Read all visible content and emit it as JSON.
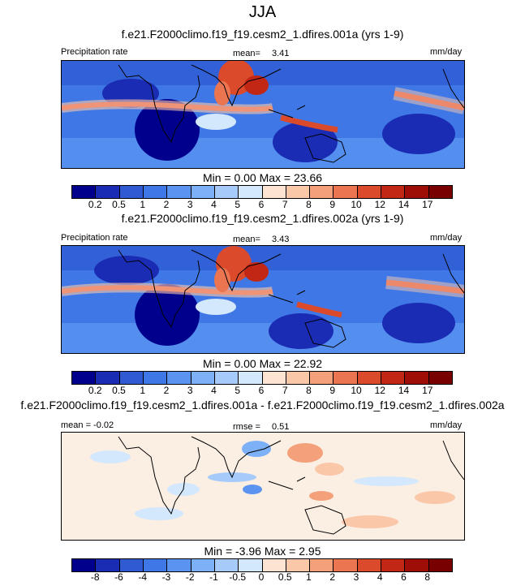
{
  "main_title": "JJA",
  "colors": {
    "precip_palette": [
      "#00008c",
      "#1a2cb4",
      "#2f5ad2",
      "#3f78e6",
      "#5a94f0",
      "#7cb0f7",
      "#a6cbfa",
      "#d3e7fd",
      "#fde4d2",
      "#fbc7a9",
      "#f4a07a",
      "#ea7550",
      "#dc4a2c",
      "#c22614",
      "#9e0d06",
      "#780000"
    ],
    "diff_palette": [
      "#00008c",
      "#1a2cb4",
      "#2f5ad2",
      "#3f78e6",
      "#5a94f0",
      "#7cb0f7",
      "#a6cbfa",
      "#d3e7fd",
      "#fde4d2",
      "#fbc7a9",
      "#f4a07a",
      "#ea7550",
      "#dc4a2c",
      "#c22614",
      "#9e0d06",
      "#780000"
    ]
  },
  "chart_data": [
    {
      "type": "heatmap",
      "title": "f.e21.F2000climo.f19_f19.cesm2_1.dfires.001a (yrs 1-9)",
      "left_label": "Precipitation rate",
      "mean_label": "mean=",
      "mean_value": "3.41",
      "units": "mm/day",
      "min_label": "Min =",
      "min_value": "0.00",
      "max_label": "Max =",
      "max_value": "23.66",
      "colorbar_levels": [
        "0.2",
        "0.5",
        "1",
        "2",
        "3",
        "4",
        "5",
        "6",
        "7",
        "8",
        "9",
        "10",
        "12",
        "14",
        "17"
      ]
    },
    {
      "type": "heatmap",
      "title": "f.e21.F2000climo.f19_f19.cesm2_1.dfires.002a (yrs 1-9)",
      "left_label": "Precipitation rate",
      "mean_label": "mean=",
      "mean_value": "3.43",
      "units": "mm/day",
      "min_label": "Min =",
      "min_value": "0.00",
      "max_label": "Max =",
      "max_value": "22.92",
      "colorbar_levels": [
        "0.2",
        "0.5",
        "1",
        "2",
        "3",
        "4",
        "5",
        "6",
        "7",
        "8",
        "9",
        "10",
        "12",
        "14",
        "17"
      ]
    },
    {
      "type": "heatmap",
      "title": "f.e21.F2000climo.f19_f19.cesm2_1.dfires.001a - f.e21.F2000climo.f19_f19.cesm2_1.dfires.002a",
      "left_label": "mean = -0.02",
      "mean_label": "rmse =",
      "mean_value": "0.51",
      "units": "mm/day",
      "min_label": "Min =",
      "min_value": "-3.96",
      "max_label": "Max =",
      "max_value": "2.95",
      "colorbar_levels": [
        "-8",
        "-6",
        "-4",
        "-3",
        "-2",
        "-1",
        "-0.5",
        "0",
        "0.5",
        "1",
        "2",
        "3",
        "4",
        "6",
        "8"
      ]
    }
  ]
}
